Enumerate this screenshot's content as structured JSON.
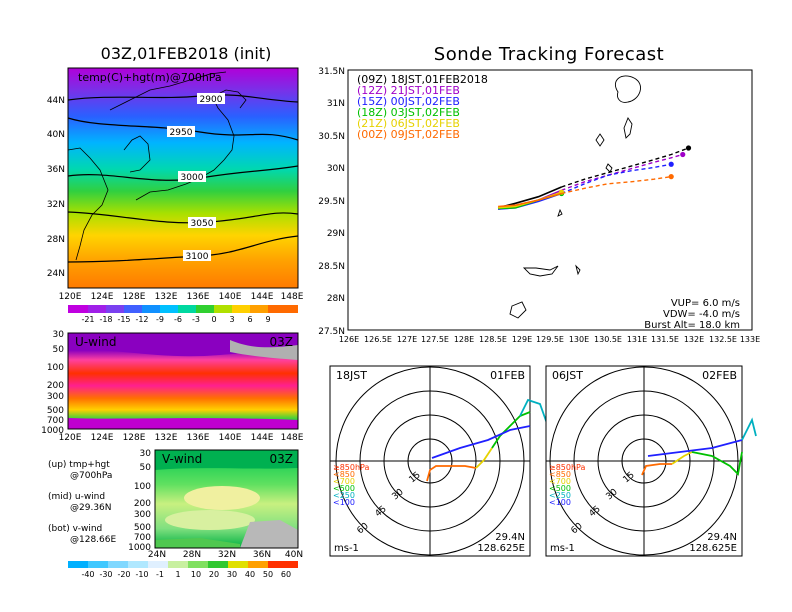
{
  "left_title": "03Z,01FEB2018 (init)",
  "right_title": "Sonde Tracking Forecast",
  "map700": {
    "label": "temp(C)+hgt(m)@700hPa",
    "lat_ticks": [
      "44N",
      "40N",
      "36N",
      "32N",
      "28N",
      "24N"
    ],
    "lon_ticks": [
      "120E",
      "124E",
      "128E",
      "132E",
      "136E",
      "140E",
      "144E",
      "148E"
    ],
    "contours": [
      "2900",
      "2950",
      "3000",
      "3050",
      "3100"
    ],
    "colorbar": [
      "-21",
      "-18",
      "-15",
      "-12",
      "-9",
      "-6",
      "-3",
      "0",
      "3",
      "6",
      "9"
    ]
  },
  "uwind": {
    "label": "U-wind",
    "time": "03Z",
    "p_ticks": [
      "30",
      "50",
      "100",
      "200",
      "300",
      "500",
      "700",
      "1000"
    ],
    "lon_ticks": [
      "120E",
      "124E",
      "128E",
      "132E",
      "136E",
      "140E",
      "144E",
      "148E"
    ]
  },
  "vwind": {
    "label": "V-wind",
    "time": "03Z",
    "p_ticks": [
      "30",
      "50",
      "100",
      "200",
      "300",
      "500",
      "700",
      "1000"
    ],
    "lat_ticks": [
      "24N",
      "28N",
      "32N",
      "36N",
      "40N"
    ],
    "colorbar": [
      "-40",
      "-30",
      "-20",
      "-10",
      "-1",
      "1",
      "10",
      "20",
      "30",
      "40",
      "50",
      "60"
    ]
  },
  "legend_notes": [
    {
      "a": "(up) tmp+hgt",
      "b": "@700hPa"
    },
    {
      "a": "(mid) u-wind",
      "b": "@29.36N"
    },
    {
      "a": "(bot) v-wind",
      "b": "@128.66E"
    }
  ],
  "track": {
    "lat_ticks": [
      "31.5N",
      "31N",
      "30.5N",
      "30N",
      "29.5N",
      "29N",
      "28.5N",
      "28N",
      "27.5N"
    ],
    "lon_ticks": [
      "126E",
      "126.5E",
      "127E",
      "127.5E",
      "128E",
      "128.5E",
      "129E",
      "129.5E",
      "130E",
      "130.5E",
      "131E",
      "131.5E",
      "132E",
      "132.5E",
      "133E"
    ],
    "vup": "VUP=  6.0  m/s",
    "vdw": "VDW= -4.0  m/s",
    "burst": "Burst Alt=  18.0  km"
  },
  "hodo": [
    {
      "time": "18JST",
      "date": "01FEB",
      "lat": "29.4N",
      "lon": "128.625E",
      "unit": "ms-1",
      "rings": [
        "15",
        "30",
        "45",
        "60"
      ]
    },
    {
      "time": "06JST",
      "date": "02FEB",
      "lat": "29.4N",
      "lon": "128.625E",
      "unit": "ms-1",
      "rings": [
        "15",
        "30",
        "45",
        "60"
      ]
    }
  ],
  "hodo_levels": [
    "≥850hPa",
    "<850",
    "<700",
    "<500",
    "<250",
    "<100"
  ],
  "colors": {
    "black": "#000000",
    "purple": "#a000c8",
    "blue": "#2020ff",
    "green": "#00c000",
    "yellow": "#e6d200",
    "orange": "#ff6a00"
  },
  "chart_data": [
    {
      "type": "line",
      "title": "Sonde Tracking Forecast",
      "xlim": [
        126,
        133
      ],
      "ylim": [
        27.5,
        31.5
      ],
      "series": [
        {
          "name": "(09Z)  18JST,01FEB2018",
          "color": "#000000",
          "x": [
            128.6,
            128.9,
            129.3,
            129.7,
            130.1,
            130.5,
            130.9,
            131.3,
            131.6,
            131.9
          ],
          "y": [
            29.38,
            29.45,
            29.55,
            29.7,
            29.82,
            29.92,
            30.02,
            30.12,
            30.2,
            30.3
          ]
        },
        {
          "name": "(12Z)  21JST,01FEB",
          "color": "#a000c8",
          "x": [
            128.6,
            128.9,
            129.3,
            129.7,
            130.1,
            130.5,
            130.9,
            131.3,
            131.6,
            131.8
          ],
          "y": [
            29.36,
            29.4,
            29.5,
            29.65,
            29.78,
            29.88,
            29.98,
            30.08,
            30.15,
            30.2
          ]
        },
        {
          "name": "(15Z)  00JST,02FEB",
          "color": "#2020ff",
          "x": [
            128.6,
            128.9,
            129.3,
            129.7,
            130.1,
            130.5,
            130.9,
            131.3,
            131.6
          ],
          "y": [
            29.36,
            29.38,
            29.48,
            29.6,
            29.75,
            29.88,
            29.95,
            30.0,
            30.05
          ]
        },
        {
          "name": "(18Z)  03JST,02FEB",
          "color": "#00c000",
          "x": [
            128.6,
            128.9,
            129.3,
            129.7
          ],
          "y": [
            29.37,
            29.38,
            29.5,
            29.6
          ]
        },
        {
          "name": "(21Z)  06JST,02FEB",
          "color": "#e6d200",
          "x": [
            128.6,
            128.9,
            129.3,
            129.7
          ],
          "y": [
            29.38,
            29.4,
            29.5,
            29.62
          ]
        },
        {
          "name": "(00Z)  09JST,02FEB",
          "color": "#ff6a00",
          "x": [
            128.6,
            128.9,
            129.3,
            129.7,
            130.1,
            130.5,
            130.9,
            131.3,
            131.6
          ],
          "y": [
            29.4,
            29.42,
            29.5,
            29.6,
            29.68,
            29.75,
            29.78,
            29.82,
            29.86
          ]
        }
      ]
    }
  ]
}
